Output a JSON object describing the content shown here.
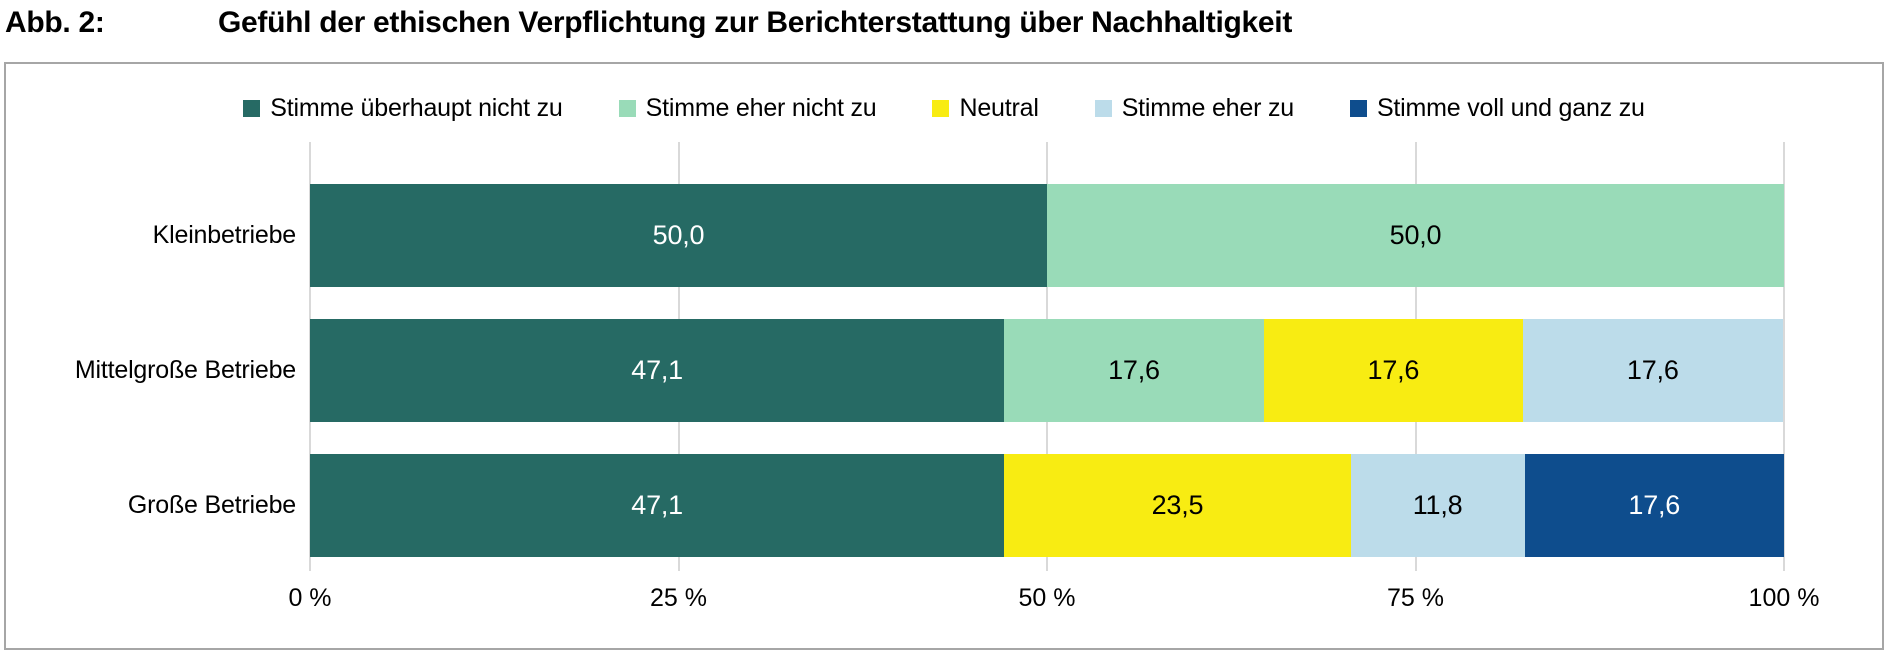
{
  "title": {
    "label": "Abb. 2:",
    "text": "Gefühl der ethischen Verpflichtung zur Berichterstattung über Nachhaltigkeit"
  },
  "chart_data": {
    "type": "bar",
    "orientation": "horizontal",
    "stacked": true,
    "unit": "%",
    "value_format": "decimal-comma-1",
    "xlim": [
      0,
      100
    ],
    "grid": true,
    "legend_position": "top-center",
    "categories": [
      "Kleinbetriebe",
      "Mittelgroße Betriebe",
      "Große Betriebe"
    ],
    "series": [
      {
        "name": "Stimme überhaupt nicht zu",
        "color": "#266a64",
        "label_color": "#ffffff",
        "values": [
          50.0,
          47.1,
          47.1
        ]
      },
      {
        "name": "Stimme eher nicht zu",
        "color": "#99dbb8",
        "label_color": "#000000",
        "values": [
          50.0,
          17.6,
          0
        ]
      },
      {
        "name": "Neutral",
        "color": "#f8ec12",
        "label_color": "#000000",
        "values": [
          0,
          17.6,
          23.5
        ]
      },
      {
        "name": "Stimme eher zu",
        "color": "#bcdcea",
        "label_color": "#000000",
        "values": [
          0,
          17.6,
          11.8
        ]
      },
      {
        "name": "Stimme voll und ganz zu",
        "color": "#0e4d8d",
        "label_color": "#ffffff",
        "values": [
          0,
          0,
          17.6
        ]
      }
    ],
    "x_tick_positions": [
      0,
      25,
      50,
      75,
      100
    ],
    "x_tick_labels": [
      "0 %",
      "25 %",
      "50 %",
      "75 %",
      "100 %"
    ]
  }
}
